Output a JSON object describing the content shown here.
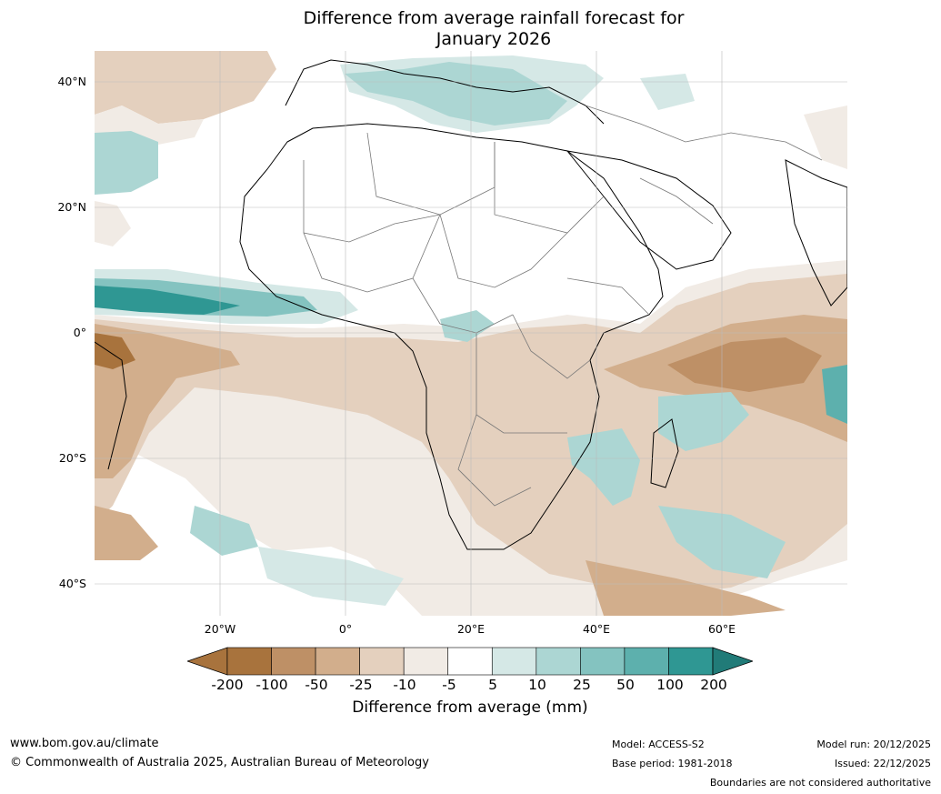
{
  "title": {
    "line1": "Difference from average rainfall forecast for",
    "line2": "January 2026"
  },
  "map": {
    "region": "Africa",
    "lat_labels": [
      "40°N",
      "20°N",
      "0°",
      "20°S",
      "40°S"
    ],
    "lon_labels": [
      "20°W",
      "0°",
      "20°E",
      "40°E",
      "60°E"
    ],
    "lat_range": [
      -45,
      45
    ],
    "lon_range": [
      -40,
      80
    ],
    "gridlines": true
  },
  "colorbar": {
    "ticks": [
      "-200",
      "-100",
      "-50",
      "-25",
      "-10",
      "-5",
      "5",
      "10",
      "25",
      "50",
      "100",
      "200"
    ],
    "colors": [
      "#a8733d",
      "#be9066",
      "#d2ae8c",
      "#e4d0be",
      "#f1ebe5",
      "#ffffff",
      "#d5e8e6",
      "#acd6d3",
      "#84c3c0",
      "#5db0ad",
      "#2f9793",
      "#217b78"
    ],
    "label": "Difference from average (mm)"
  },
  "footer": {
    "url": "www.bom.gov.au/climate",
    "copyright": "© Commonwealth of Australia 2025, Australian Bureau of Meteorology",
    "model": "Model: ACCESS-S2",
    "base_period": "Base period: 1981-2018",
    "model_run": "Model run: 20/12/2025",
    "issued": "Issued: 22/12/2025",
    "disclaimer": "Boundaries are not considered authoritative"
  }
}
